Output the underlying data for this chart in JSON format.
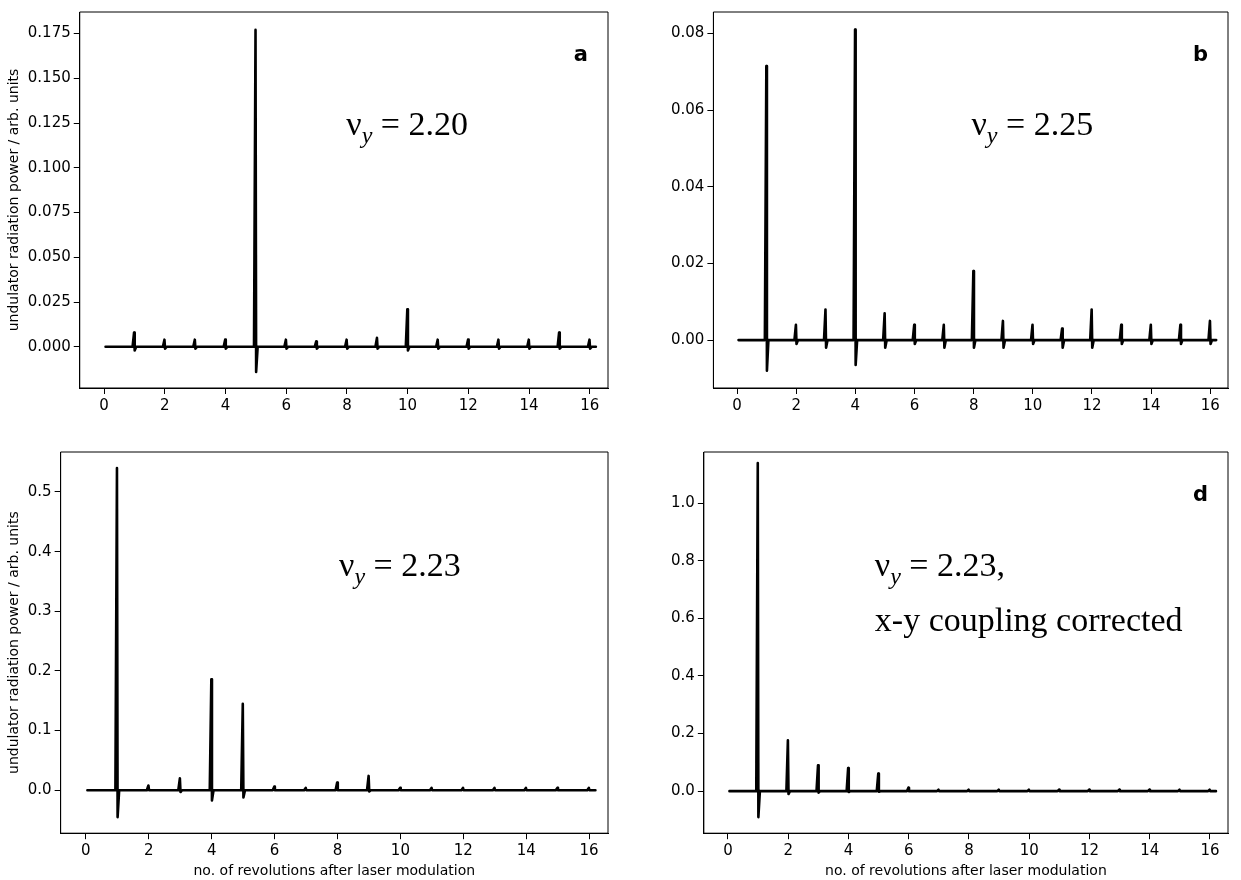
{
  "chart_data": [
    {
      "type": "line",
      "title": "a",
      "ylabel": "undulator radiation power / arb. units",
      "annotations": [
        "ν$_{y}$ = 2.20"
      ],
      "marker": "none",
      "grid": false,
      "x": [
        0.05,
        0.94,
        0.99,
        1.01,
        1.06,
        1.94,
        1.99,
        2.01,
        2.06,
        2.94,
        2.99,
        3.01,
        3.06,
        3.94,
        3.99,
        4.01,
        4.06,
        4.94,
        4.99,
        5.01,
        5.06,
        5.94,
        5.99,
        6.01,
        6.06,
        6.94,
        6.99,
        7.01,
        7.06,
        7.94,
        7.99,
        8.01,
        8.06,
        8.94,
        8.99,
        9.01,
        9.06,
        9.94,
        9.99,
        10.01,
        10.06,
        10.94,
        10.99,
        11.01,
        11.06,
        11.94,
        11.99,
        12.01,
        12.06,
        12.94,
        12.99,
        13.01,
        13.06,
        13.94,
        13.99,
        14.01,
        14.06,
        14.94,
        14.99,
        15.01,
        15.06,
        15.94,
        15.99,
        16.01,
        16.06,
        16.2
      ],
      "series": [
        {
          "color": "#000000",
          "values": [
            0,
            0,
            0.008,
            -0.002,
            0,
            0,
            0.004,
            -0.001,
            0,
            0,
            0.004,
            -0.001,
            0,
            0,
            0.004,
            -0.001,
            0,
            0,
            0.177,
            -0.014,
            0,
            0,
            0.004,
            -0.001,
            0,
            0,
            0.003,
            -0.001,
            0,
            0,
            0.004,
            -0.001,
            0,
            0,
            0.005,
            -0.001,
            0,
            0,
            0.021,
            -0.002,
            0,
            0,
            0.004,
            -0.001,
            0,
            0,
            0.004,
            -0.001,
            0,
            0,
            0.004,
            -0.001,
            0,
            0,
            0.004,
            -0.001,
            0,
            0,
            0.008,
            -0.001,
            0,
            0,
            0.004,
            -0.001,
            0,
            0
          ]
        }
      ],
      "xlim": [
        -0.8,
        16.6
      ],
      "xticks": [
        0,
        2,
        4,
        6,
        8,
        10,
        12,
        14,
        16
      ],
      "ylim": [
        -0.023,
        0.187
      ],
      "yticks": [
        {
          "value": 0,
          "label": "0.000"
        },
        {
          "value": 0.025,
          "label": "0.025"
        },
        {
          "value": 0.05,
          "label": "0.050"
        },
        {
          "value": 0.075,
          "label": "0.075"
        },
        {
          "value": 0.1,
          "label": "0.100"
        },
        {
          "value": 0.125,
          "label": "0.125"
        },
        {
          "value": 0.15,
          "label": "0.150"
        },
        {
          "value": 0.175,
          "label": "0.175"
        }
      ]
    },
    {
      "type": "line",
      "title": "b",
      "annotations": [
        "ν$_{y}$ = 2.25"
      ],
      "marker": "none",
      "grid": false,
      "x": [
        0.05,
        0.94,
        0.99,
        1.01,
        1.06,
        1.94,
        1.99,
        2.01,
        2.06,
        2.94,
        2.99,
        3.01,
        3.06,
        3.94,
        3.99,
        4.01,
        4.06,
        4.94,
        4.99,
        5.01,
        5.06,
        5.94,
        5.99,
        6.01,
        6.06,
        6.94,
        6.99,
        7.01,
        7.06,
        7.94,
        7.99,
        8.01,
        8.06,
        8.94,
        8.99,
        9.01,
        9.06,
        9.94,
        9.99,
        10.01,
        10.06,
        10.94,
        10.99,
        11.01,
        11.06,
        11.94,
        11.99,
        12.01,
        12.06,
        12.94,
        12.99,
        13.01,
        13.06,
        13.94,
        13.99,
        14.01,
        14.06,
        14.94,
        14.99,
        15.01,
        15.06,
        15.94,
        15.99,
        16.01,
        16.06,
        16.2
      ],
      "series": [
        {
          "color": "#000000",
          "values": [
            0,
            0,
            0.0715,
            -0.008,
            0,
            0,
            0.004,
            -0.001,
            0,
            0,
            0.008,
            -0.002,
            0,
            0,
            0.081,
            -0.0065,
            0,
            0,
            0.007,
            -0.002,
            0,
            0,
            0.004,
            -0.001,
            0,
            0,
            0.004,
            -0.002,
            0,
            0,
            0.018,
            -0.002,
            0,
            0,
            0.005,
            -0.002,
            0,
            0,
            0.004,
            -0.001,
            0,
            0,
            0.003,
            -0.002,
            0,
            0,
            0.008,
            -0.002,
            0,
            0,
            0.004,
            -0.001,
            0,
            0,
            0.004,
            -0.001,
            0,
            0,
            0.004,
            -0.001,
            0,
            0,
            0.005,
            -0.001,
            0,
            0
          ]
        }
      ],
      "xlim": [
        -0.8,
        16.6
      ],
      "xticks": [
        0,
        2,
        4,
        6,
        8,
        10,
        12,
        14,
        16
      ],
      "ylim": [
        -0.0125,
        0.0856
      ],
      "yticks": [
        {
          "value": 0,
          "label": "0.00"
        },
        {
          "value": 0.02,
          "label": "0.02"
        },
        {
          "value": 0.04,
          "label": "0.04"
        },
        {
          "value": 0.06,
          "label": "0.06"
        },
        {
          "value": 0.08,
          "label": "0.08"
        }
      ]
    },
    {
      "type": "line",
      "xlabel": "no. of revolutions after laser modulation",
      "ylabel": "undulator radiation power / arb. units",
      "annotations": [
        "ν$_{y}$ = 2.23"
      ],
      "marker": "none",
      "grid": false,
      "x": [
        0.05,
        0.94,
        0.99,
        1.01,
        1.06,
        1.94,
        1.99,
        2.01,
        2.06,
        2.94,
        2.99,
        3.01,
        3.06,
        3.94,
        3.99,
        4.01,
        4.06,
        4.94,
        4.99,
        5.01,
        5.06,
        5.94,
        5.99,
        6.01,
        6.06,
        6.94,
        6.99,
        7.01,
        7.06,
        7.94,
        7.99,
        8.01,
        8.06,
        8.94,
        8.99,
        9.01,
        9.06,
        9.94,
        9.99,
        10.01,
        10.06,
        10.94,
        10.99,
        11.01,
        11.06,
        11.94,
        11.99,
        12.01,
        12.06,
        12.94,
        12.99,
        13.01,
        13.06,
        13.94,
        13.99,
        14.01,
        14.06,
        14.94,
        14.99,
        15.01,
        15.06,
        15.94,
        15.99,
        16.01,
        16.06,
        16.2
      ],
      "series": [
        {
          "color": "#000000",
          "values": [
            0,
            0,
            0.54,
            -0.045,
            0,
            0,
            0.008,
            0,
            0,
            0,
            0.02,
            -0.003,
            0,
            0,
            0.186,
            -0.017,
            0,
            0,
            0.145,
            -0.012,
            0,
            0,
            0.006,
            0,
            0,
            0,
            0.004,
            0,
            0,
            0,
            0.013,
            0,
            0,
            0,
            0.024,
            -0.002,
            0,
            0,
            0.004,
            0,
            0,
            0,
            0.004,
            0,
            0,
            0,
            0.004,
            0,
            0,
            0,
            0.004,
            0,
            0,
            0,
            0.004,
            0,
            0,
            0,
            0.004,
            0,
            0,
            0,
            0.004,
            0,
            0,
            0
          ]
        }
      ],
      "xlim": [
        -0.8,
        16.6
      ],
      "xticks": [
        0,
        2,
        4,
        6,
        8,
        10,
        12,
        14,
        16
      ],
      "ylim": [
        -0.072,
        0.567
      ],
      "yticks": [
        {
          "value": 0,
          "label": "0.0"
        },
        0.1,
        0.2,
        0.3,
        0.4,
        0.5
      ]
    },
    {
      "type": "line",
      "title": "d",
      "xlabel": "no. of revolutions after laser modulation",
      "annotations": [
        "ν$_{y}$ = 2.23,",
        "x-y coupling corrected"
      ],
      "marker": "none",
      "grid": false,
      "x": [
        0.05,
        0.94,
        0.99,
        1.01,
        1.06,
        1.94,
        1.99,
        2.01,
        2.06,
        2.94,
        2.99,
        3.01,
        3.06,
        3.94,
        3.99,
        4.01,
        4.06,
        4.94,
        4.99,
        5.01,
        5.06,
        5.94,
        5.99,
        6.01,
        6.06,
        6.94,
        6.99,
        7.01,
        7.06,
        7.94,
        7.99,
        8.01,
        8.06,
        8.94,
        8.99,
        9.01,
        9.06,
        9.94,
        9.99,
        10.01,
        10.06,
        10.94,
        10.99,
        11.01,
        11.06,
        11.94,
        11.99,
        12.01,
        12.06,
        12.94,
        12.99,
        13.01,
        13.06,
        13.94,
        13.99,
        14.01,
        14.06,
        14.94,
        14.99,
        15.01,
        15.06,
        15.94,
        15.99,
        16.01,
        16.06,
        16.2
      ],
      "series": [
        {
          "color": "#000000",
          "values": [
            0,
            0,
            1.14,
            -0.09,
            0,
            0,
            0.177,
            -0.01,
            0,
            0,
            0.09,
            -0.005,
            0,
            0,
            0.08,
            -0.003,
            0,
            0,
            0.061,
            -0.002,
            0,
            0,
            0.012,
            0,
            0,
            0,
            0.005,
            0,
            0,
            0,
            0.005,
            0,
            0,
            0,
            0.005,
            0,
            0,
            0,
            0.005,
            0,
            0,
            0,
            0.005,
            0,
            0,
            0,
            0.005,
            0,
            0,
            0,
            0.005,
            0,
            0,
            0,
            0.005,
            0,
            0,
            0,
            0.005,
            0,
            0,
            0,
            0.005,
            0,
            0,
            0
          ]
        }
      ],
      "xlim": [
        -0.8,
        16.6
      ],
      "xticks": [
        0,
        2,
        4,
        6,
        8,
        10,
        12,
        14,
        16
      ],
      "ylim": [
        -0.146,
        1.178
      ],
      "yticks": [
        {
          "value": 0,
          "label": "0.0"
        },
        0.2,
        0.4,
        0.6,
        0.8,
        {
          "value": 1,
          "label": "1.0"
        }
      ]
    }
  ]
}
